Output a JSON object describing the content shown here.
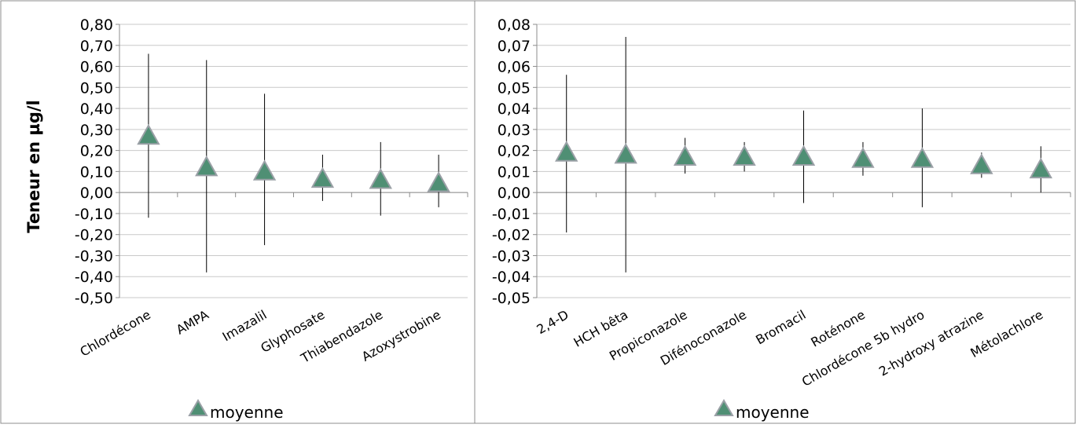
{
  "ylabel": "Teneur en µg/l",
  "legend_label": "moyenne",
  "colors": {
    "marker_fill": "#4f8f74",
    "marker_stroke": "#9aa0a6",
    "whisker": "#000000",
    "grid": "#c9c9c9",
    "frame": "#8c8c8c"
  },
  "chart_data": [
    {
      "type": "scatter",
      "title": "",
      "xlabel": "",
      "ylabel": "Teneur en µg/l",
      "ylim": [
        -0.5,
        0.8
      ],
      "ytick_step": 0.1,
      "ytick_labels": [
        "0,80",
        "0,70",
        "0,60",
        "0,50",
        "0,40",
        "0,30",
        "0,20",
        "0,10",
        "0,00",
        "-0,10",
        "-0,20",
        "-0,30",
        "-0,40",
        "-0,50"
      ],
      "grid": true,
      "legend_position": "bottom",
      "categories": [
        "Chlordécone",
        "AMPA",
        "Imazalil",
        "Glyphosate",
        "Thiabendazole",
        "Azoxystrobine"
      ],
      "series": [
        {
          "name": "moyenne",
          "values": [
            0.27,
            0.12,
            0.1,
            0.065,
            0.06,
            0.045
          ]
        }
      ],
      "error_range": [
        [
          -0.12,
          0.66
        ],
        [
          -0.38,
          0.63
        ],
        [
          -0.25,
          0.47
        ],
        [
          -0.04,
          0.18
        ],
        [
          -0.11,
          0.24
        ],
        [
          -0.07,
          0.18
        ]
      ]
    },
    {
      "type": "scatter",
      "title": "",
      "xlabel": "",
      "ylabel": "",
      "ylim": [
        -0.05,
        0.08
      ],
      "ytick_step": 0.01,
      "ytick_labels": [
        "0,08",
        "0,07",
        "0,06",
        "0,05",
        "0,04",
        "0,03",
        "0,02",
        "0,01",
        "0,00",
        "-0,01",
        "-0,02",
        "-0,03",
        "-0,04",
        "-0,05"
      ],
      "grid": true,
      "legend_position": "bottom",
      "categories": [
        "2,4-D",
        "HCH bêta",
        "Propiconazole",
        "Difénoconazole",
        "Bromacil",
        "Roténone",
        "Chlordécone 5b hydro",
        "2-hydroxy atrazine",
        "Métolachlore"
      ],
      "series": [
        {
          "name": "moyenne",
          "values": [
            0.019,
            0.018,
            0.017,
            0.017,
            0.017,
            0.016,
            0.016,
            0.013,
            0.011
          ]
        }
      ],
      "error_range": [
        [
          -0.019,
          0.056
        ],
        [
          -0.038,
          0.074
        ],
        [
          0.009,
          0.026
        ],
        [
          0.01,
          0.024
        ],
        [
          -0.005,
          0.039
        ],
        [
          0.008,
          0.024
        ],
        [
          -0.007,
          0.04
        ],
        [
          0.007,
          0.019
        ],
        [
          0.0,
          0.022
        ]
      ]
    }
  ]
}
